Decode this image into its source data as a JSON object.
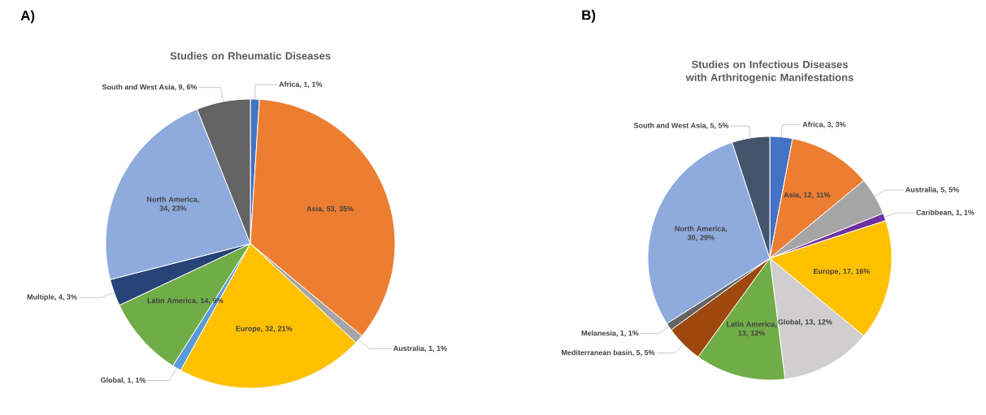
{
  "chart_data": [
    {
      "type": "pie",
      "title": "Studies on Rheumatic Diseases",
      "annotations": [
        "A)"
      ],
      "categories": [
        "Africa",
        "Asia",
        "Australia",
        "Europe",
        "Global",
        "Latin America",
        "Multiple",
        "North America",
        "South and West Asia"
      ],
      "values": [
        1,
        35,
        1,
        21,
        1,
        9,
        3,
        23,
        6
      ],
      "value_labels": [
        ", 1, 1%",
        ", 53, 35%",
        ", 1, 1%",
        ", 32, 21%",
        ", 1, 1%",
        ", 14, 9%",
        ", 4, 3%",
        ", 34, 23%",
        ", 9, 6%"
      ],
      "colors": [
        "#4472c4",
        "#ed7d31",
        "#a5a5a5",
        "#ffc000",
        "#5b9bd5",
        "#70ad47",
        "#264478",
        "#8faadc",
        "#636363"
      ],
      "data_labels": true
    },
    {
      "type": "pie",
      "title": "Studies on Infectious Diseases with Arthritogenic Manifestations",
      "annotations": [
        "B)"
      ],
      "categories": [
        "Africa",
        "Asia",
        "Australia",
        "Caribbean",
        "Europe",
        "Global",
        "Latin America",
        "Mediterranean basin",
        "Melanesia",
        "North America",
        "South and West Asia"
      ],
      "values": [
        3,
        11,
        5,
        1,
        16,
        12,
        12,
        5,
        1,
        29,
        5
      ],
      "value_labels": [
        ", 3, 3%",
        ", 12, 11%",
        ", 5, 5%",
        ", 1, 1%",
        ", 17, 16%",
        ", 13, 12%",
        ", 13, 12%",
        ", 5, 5%",
        ", 1, 1%",
        ", 30, 29%",
        ", 5, 5%"
      ],
      "colors": [
        "#4472c4",
        "#ed7d31",
        "#a5a5a5",
        "#7030a0",
        "#ffc000",
        "#d0cece",
        "#70ad47",
        "#9e480e",
        "#636363",
        "#8faadc",
        "#44546a"
      ],
      "data_labels": true
    }
  ]
}
